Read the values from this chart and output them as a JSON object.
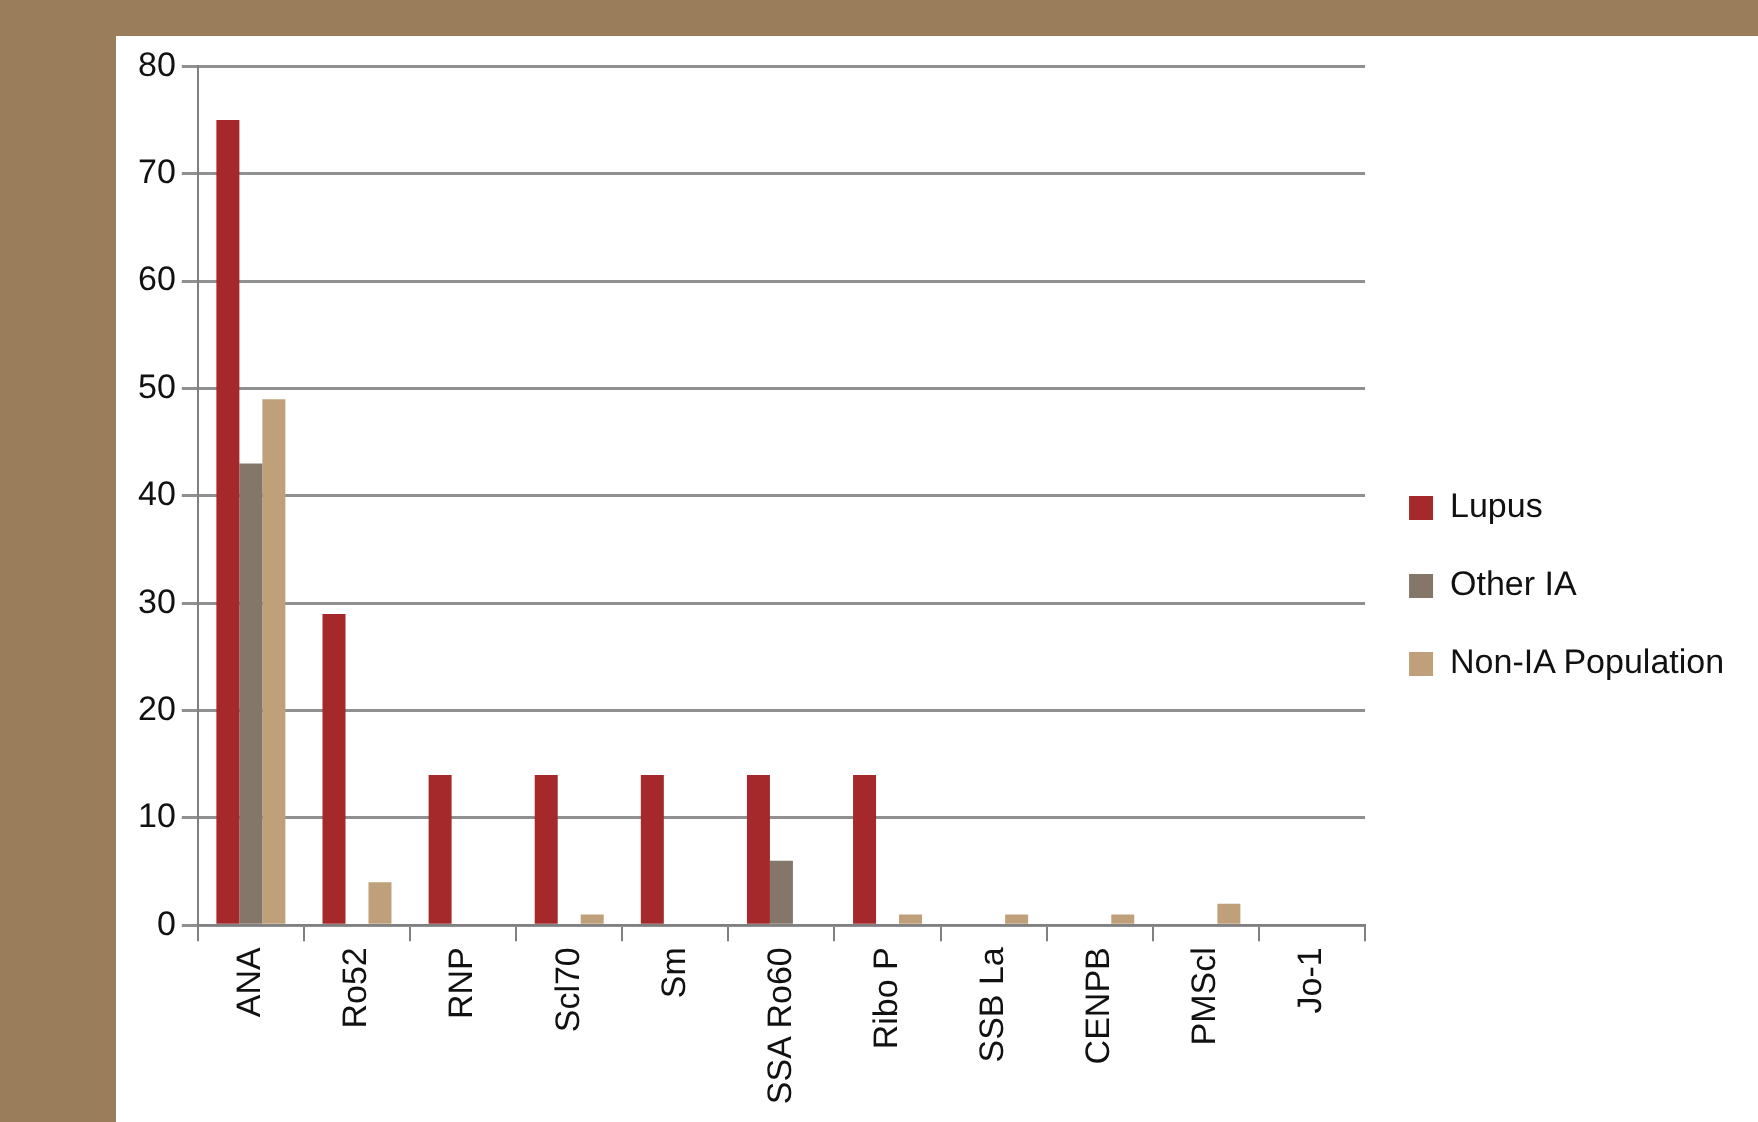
{
  "chart_data": {
    "type": "bar",
    "categories": [
      "ANA",
      "Ro52",
      "RNP",
      "Scl70",
      "Sm",
      "SSA Ro60",
      "Ribo P",
      "SSB La",
      "CENPB",
      "PMScl",
      "Jo-1"
    ],
    "series": [
      {
        "name": "Lupus",
        "color": "#a5282a",
        "values": [
          75,
          29,
          14,
          14,
          14,
          14,
          14,
          0,
          0,
          0,
          0
        ]
      },
      {
        "name": "Other IA",
        "color": "#85766a",
        "values": [
          43,
          0,
          0,
          0,
          0,
          6,
          0,
          0,
          0,
          0,
          0
        ]
      },
      {
        "name": "Non-IA Population",
        "color": "#c0a07a",
        "values": [
          49,
          4,
          0,
          1,
          0,
          0,
          1,
          1,
          1,
          2,
          0
        ]
      }
    ],
    "ylim": [
      0,
      80
    ],
    "yticks": [
      0,
      10,
      20,
      30,
      40,
      50,
      60,
      70,
      80
    ],
    "grid": "y",
    "legend": "right"
  }
}
